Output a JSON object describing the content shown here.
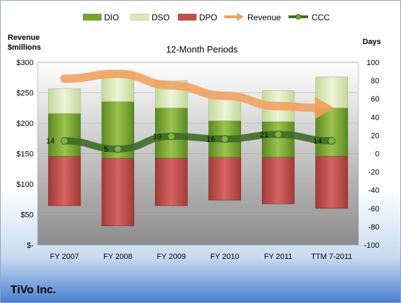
{
  "company": "TiVo Inc.",
  "chart_data": {
    "type": "bar",
    "title": "12-Month Periods",
    "categories": [
      "FY 2007",
      "FY 2008",
      "FY 2009",
      "FY 2010",
      "FY 2011",
      "TTM 7-2011"
    ],
    "left_axis": {
      "label_line1": "Revenue",
      "label_line2": "$millions",
      "range": [
        0,
        300
      ],
      "ticks": [
        "$-",
        "$50",
        "$100",
        "$150",
        "$200",
        "$250",
        "$300"
      ]
    },
    "right_axis": {
      "label": "Days",
      "range": [
        -100,
        100
      ],
      "ticks": [
        "-100",
        "-80",
        "-60",
        "-40",
        "-20",
        "0",
        "20",
        "40",
        "60",
        "80",
        "100"
      ]
    },
    "legend_position": "top",
    "series": [
      {
        "name": "DIO",
        "axis": "right",
        "values": [
          -3,
          -5,
          -5,
          -4,
          -4,
          -3
        ],
        "dio_top": [
          44,
          57,
          50,
          36,
          35,
          50
        ]
      },
      {
        "name": "DSO",
        "values": [
          27,
          32,
          30,
          24,
          34,
          34
        ]
      },
      {
        "name": "DPO",
        "values": [
          -57,
          -79,
          -57,
          -51,
          -55,
          -60
        ]
      },
      {
        "name": "Revenue",
        "values": [
          273,
          281,
          262,
          245,
          228,
          225
        ]
      },
      {
        "name": "CCC",
        "values": [
          14,
          5,
          19,
          16,
          21,
          14
        ]
      }
    ],
    "data_labels": [
      "14",
      "5",
      "19",
      "16",
      "21",
      "14"
    ],
    "colors": {
      "DIO": "#77a330",
      "DSO": "#dbe8b5",
      "DPO": "#c0504d",
      "Revenue": "#f0a060",
      "CCC": "#3e6b26"
    }
  }
}
